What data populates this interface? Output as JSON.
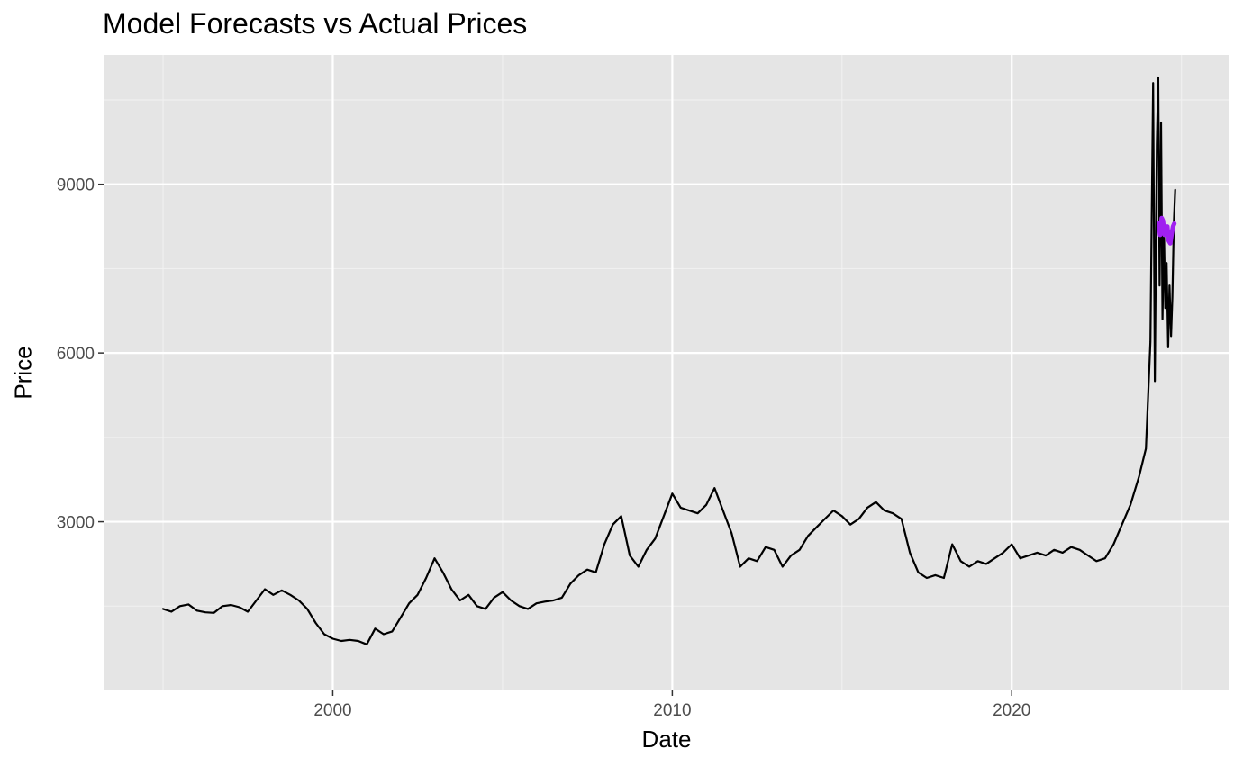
{
  "chart_data": {
    "type": "line",
    "title": "Model Forecasts vs Actual Prices",
    "xlabel": "Date",
    "ylabel": "Price",
    "x_ticks": [
      "2000",
      "2010",
      "2020"
    ],
    "y_ticks": [
      "3000",
      "6000",
      "9000"
    ],
    "xlim": [
      "1993-04-01",
      "2026-06-01"
    ],
    "ylim": [
      0,
      11300
    ],
    "grid": true,
    "panel_background": "#e5e5e5",
    "series": [
      {
        "color": "#000000",
        "points": [
          [
            "1995-01-01",
            1450
          ],
          [
            "1995-04-01",
            1400
          ],
          [
            "1995-07-01",
            1500
          ],
          [
            "1995-10-01",
            1530
          ],
          [
            "1996-01-01",
            1420
          ],
          [
            "1996-04-01",
            1390
          ],
          [
            "1996-07-01",
            1380
          ],
          [
            "1996-10-01",
            1500
          ],
          [
            "1997-01-01",
            1520
          ],
          [
            "1997-04-01",
            1480
          ],
          [
            "1997-07-01",
            1400
          ],
          [
            "1997-10-01",
            1600
          ],
          [
            "1998-01-01",
            1800
          ],
          [
            "1998-04-01",
            1700
          ],
          [
            "1998-07-01",
            1780
          ],
          [
            "1998-10-01",
            1700
          ],
          [
            "1999-01-01",
            1600
          ],
          [
            "1999-04-01",
            1450
          ],
          [
            "1999-07-01",
            1200
          ],
          [
            "1999-10-01",
            1000
          ],
          [
            "2000-01-01",
            920
          ],
          [
            "2000-04-01",
            880
          ],
          [
            "2000-07-01",
            900
          ],
          [
            "2000-10-01",
            880
          ],
          [
            "2001-01-01",
            820
          ],
          [
            "2001-04-01",
            1100
          ],
          [
            "2001-07-01",
            1000
          ],
          [
            "2001-10-01",
            1050
          ],
          [
            "2002-01-01",
            1300
          ],
          [
            "2002-04-01",
            1550
          ],
          [
            "2002-07-01",
            1700
          ],
          [
            "2002-10-01",
            2000
          ],
          [
            "2003-01-01",
            2350
          ],
          [
            "2003-04-01",
            2100
          ],
          [
            "2003-07-01",
            1800
          ],
          [
            "2003-10-01",
            1600
          ],
          [
            "2004-01-01",
            1700
          ],
          [
            "2004-04-01",
            1500
          ],
          [
            "2004-07-01",
            1450
          ],
          [
            "2004-10-01",
            1650
          ],
          [
            "2005-01-01",
            1750
          ],
          [
            "2005-04-01",
            1600
          ],
          [
            "2005-07-01",
            1500
          ],
          [
            "2005-10-01",
            1450
          ],
          [
            "2006-01-01",
            1550
          ],
          [
            "2006-04-01",
            1580
          ],
          [
            "2006-07-01",
            1600
          ],
          [
            "2006-10-01",
            1650
          ],
          [
            "2007-01-01",
            1900
          ],
          [
            "2007-04-01",
            2050
          ],
          [
            "2007-07-01",
            2150
          ],
          [
            "2007-10-01",
            2100
          ],
          [
            "2008-01-01",
            2600
          ],
          [
            "2008-04-01",
            2950
          ],
          [
            "2008-07-01",
            3100
          ],
          [
            "2008-10-01",
            2400
          ],
          [
            "2009-01-01",
            2200
          ],
          [
            "2009-04-01",
            2500
          ],
          [
            "2009-07-01",
            2700
          ],
          [
            "2009-10-01",
            3100
          ],
          [
            "2010-01-01",
            3500
          ],
          [
            "2010-04-01",
            3250
          ],
          [
            "2010-07-01",
            3200
          ],
          [
            "2010-10-01",
            3150
          ],
          [
            "2011-01-01",
            3300
          ],
          [
            "2011-04-01",
            3600
          ],
          [
            "2011-07-01",
            3200
          ],
          [
            "2011-10-01",
            2800
          ],
          [
            "2012-01-01",
            2200
          ],
          [
            "2012-04-01",
            2350
          ],
          [
            "2012-07-01",
            2300
          ],
          [
            "2012-10-01",
            2550
          ],
          [
            "2013-01-01",
            2500
          ],
          [
            "2013-04-01",
            2200
          ],
          [
            "2013-07-01",
            2400
          ],
          [
            "2013-10-01",
            2500
          ],
          [
            "2014-01-01",
            2750
          ],
          [
            "2014-04-01",
            2900
          ],
          [
            "2014-07-01",
            3050
          ],
          [
            "2014-10-01",
            3200
          ],
          [
            "2015-01-01",
            3100
          ],
          [
            "2015-04-01",
            2950
          ],
          [
            "2015-07-01",
            3050
          ],
          [
            "2015-10-01",
            3250
          ],
          [
            "2016-01-01",
            3350
          ],
          [
            "2016-04-01",
            3200
          ],
          [
            "2016-07-01",
            3150
          ],
          [
            "2016-10-01",
            3050
          ],
          [
            "2017-01-01",
            2450
          ],
          [
            "2017-04-01",
            2100
          ],
          [
            "2017-07-01",
            2000
          ],
          [
            "2017-10-01",
            2050
          ],
          [
            "2018-01-01",
            2000
          ],
          [
            "2018-04-01",
            2600
          ],
          [
            "2018-07-01",
            2300
          ],
          [
            "2018-10-01",
            2200
          ],
          [
            "2019-01-01",
            2300
          ],
          [
            "2019-04-01",
            2250
          ],
          [
            "2019-07-01",
            2350
          ],
          [
            "2019-10-01",
            2450
          ],
          [
            "2020-01-01",
            2600
          ],
          [
            "2020-04-01",
            2350
          ],
          [
            "2020-07-01",
            2400
          ],
          [
            "2020-10-01",
            2450
          ],
          [
            "2021-01-01",
            2400
          ],
          [
            "2021-04-01",
            2500
          ],
          [
            "2021-07-01",
            2450
          ],
          [
            "2021-10-01",
            2550
          ],
          [
            "2022-01-01",
            2500
          ],
          [
            "2022-04-01",
            2400
          ],
          [
            "2022-07-01",
            2300
          ],
          [
            "2022-10-01",
            2350
          ],
          [
            "2023-01-01",
            2600
          ],
          [
            "2023-04-01",
            2950
          ],
          [
            "2023-07-01",
            3300
          ],
          [
            "2023-10-01",
            3800
          ],
          [
            "2023-12-15",
            4300
          ],
          [
            "2024-02-01",
            6200
          ],
          [
            "2024-03-01",
            10800
          ],
          [
            "2024-03-20",
            5500
          ],
          [
            "2024-04-10",
            9700
          ],
          [
            "2024-04-25",
            10900
          ],
          [
            "2024-05-10",
            7200
          ],
          [
            "2024-05-25",
            10100
          ],
          [
            "2024-06-10",
            6600
          ],
          [
            "2024-06-25",
            8200
          ],
          [
            "2024-07-10",
            6800
          ],
          [
            "2024-07-25",
            7600
          ],
          [
            "2024-08-10",
            6100
          ],
          [
            "2024-08-25",
            7200
          ],
          [
            "2024-09-10",
            6300
          ],
          [
            "2024-09-25",
            7000
          ],
          [
            "2024-10-10",
            8300
          ],
          [
            "2024-10-25",
            8900
          ]
        ]
      },
      {
        "color": "#a020f0",
        "points": [
          [
            "2024-05-01",
            8300
          ],
          [
            "2024-05-15",
            8100
          ],
          [
            "2024-06-01",
            8400
          ],
          [
            "2024-06-15",
            8350
          ],
          [
            "2024-07-01",
            8100
          ],
          [
            "2024-07-15",
            8150
          ],
          [
            "2024-08-01",
            8250
          ],
          [
            "2024-08-15",
            8000
          ],
          [
            "2024-09-01",
            7950
          ],
          [
            "2024-09-15",
            8100
          ],
          [
            "2024-10-01",
            8250
          ],
          [
            "2024-10-15",
            8300
          ]
        ]
      }
    ]
  }
}
